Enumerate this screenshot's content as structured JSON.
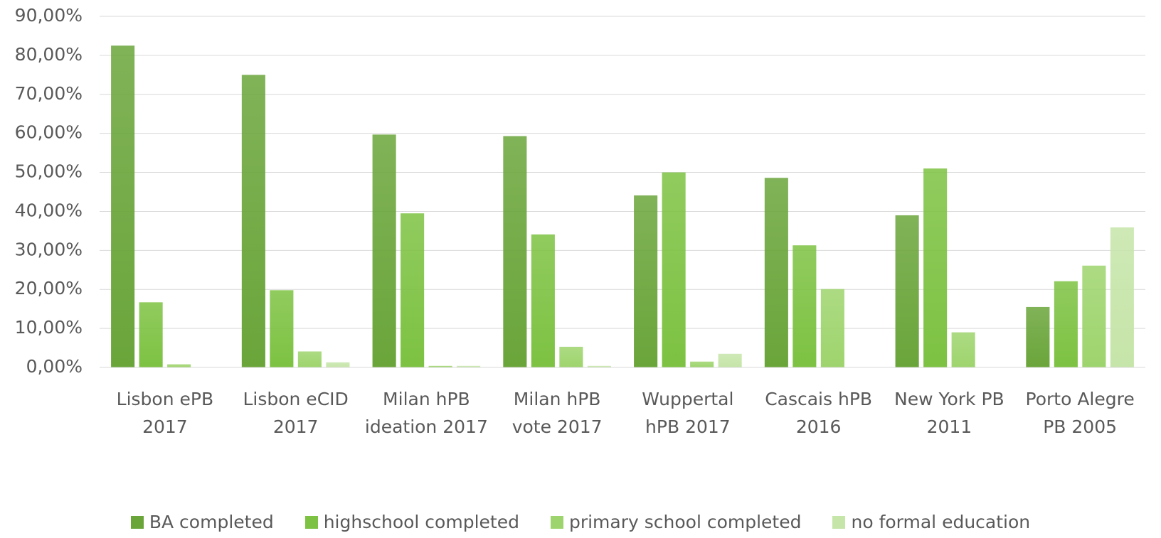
{
  "chart_data": {
    "type": "bar",
    "categories": [
      "Lisbon ePB 2017",
      "Lisbon eCID 2017",
      "Milan hPB ideation 2017",
      "Milan hPB vote 2017",
      "Wuppertal hPB 2017",
      "Cascais hPB 2016",
      "New York PB 2011",
      "Porto Alegre PB 2005"
    ],
    "series": [
      {
        "name": "BA completed",
        "color": "#6aa53a",
        "values": [
          82.5,
          75,
          59.7,
          59.3,
          44.1,
          48.6,
          39,
          15.5
        ]
      },
      {
        "name": "highschool completed",
        "color": "#7dc242",
        "values": [
          16.7,
          19.8,
          39.5,
          34.1,
          50,
          31.3,
          51,
          22.1
        ]
      },
      {
        "name": "primary school completed",
        "color": "#9ed46d",
        "values": [
          0.8,
          4.1,
          0.4,
          5.3,
          1.5,
          20.1,
          9,
          26.1
        ]
      },
      {
        "name": "no formal education",
        "color": "#c6e5a9",
        "values": [
          0,
          1.3,
          0.4,
          0.4,
          3.5,
          0,
          0,
          35.9
        ]
      }
    ],
    "ylim": [
      0,
      90
    ],
    "yticks": [
      {
        "value": 0,
        "label": "0,00%"
      },
      {
        "value": 10,
        "label": "10,00%"
      },
      {
        "value": 20,
        "label": "20,00%"
      },
      {
        "value": 30,
        "label": "30,00%"
      },
      {
        "value": 40,
        "label": "40,00%"
      },
      {
        "value": 50,
        "label": "50,00%"
      },
      {
        "value": 60,
        "label": "60,00%"
      },
      {
        "value": 70,
        "label": "70,00%"
      },
      {
        "value": 80,
        "label": "80,00%"
      },
      {
        "value": 90,
        "label": "90,00%"
      }
    ],
    "grid": true
  }
}
